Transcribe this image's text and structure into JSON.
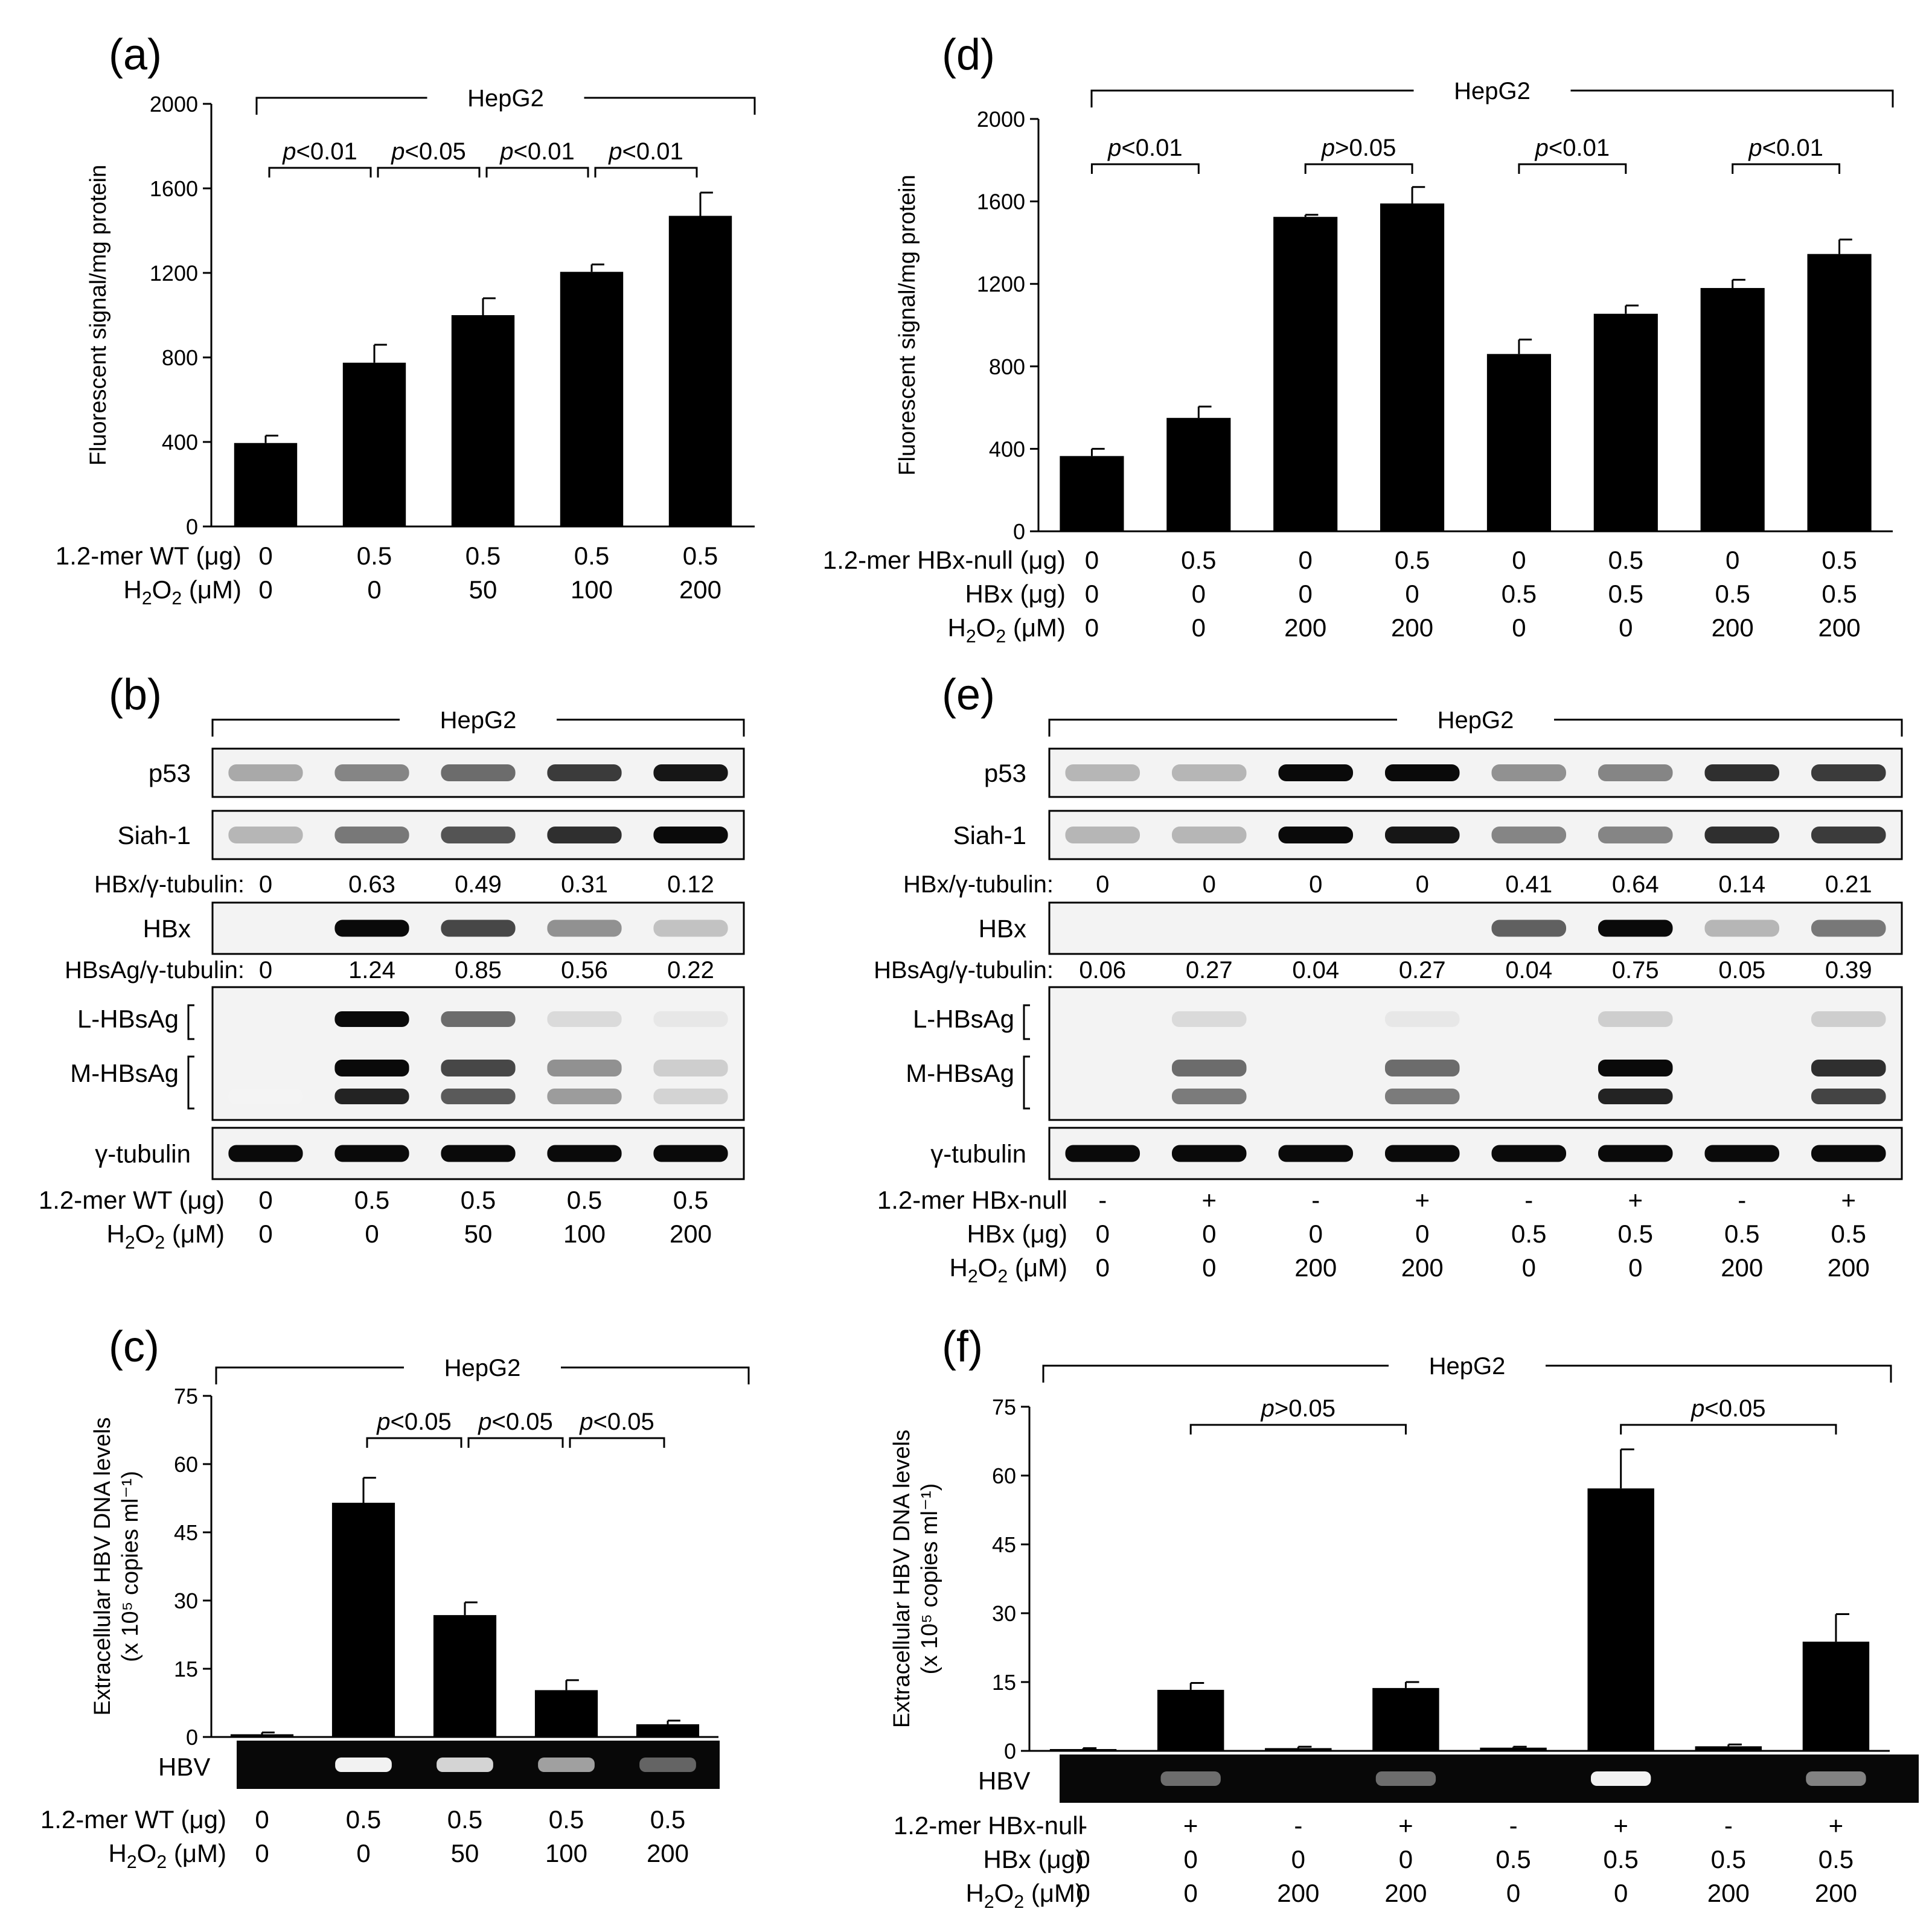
{
  "figure": {
    "cell_line": "HepG2",
    "panel_labels": [
      "(a)",
      "(b)",
      "(c)",
      "(d)",
      "(e)",
      "(f)"
    ]
  },
  "chart_data": [
    {
      "panel": "(a)",
      "type": "bar",
      "ylabel": "Fluorescent signal/mg protein",
      "ylim": [
        0,
        2000
      ],
      "yticks": [
        0,
        400,
        800,
        1200,
        1600,
        2000
      ],
      "values": [
        395,
        775,
        1000,
        1205,
        1470
      ],
      "errors": [
        35,
        85,
        80,
        35,
        110
      ],
      "conditions": [
        {
          "label": "1.2-mer WT (μg)",
          "values": [
            "0",
            "0.5",
            "0.5",
            "0.5",
            "0.5"
          ]
        },
        {
          "label": "H2O2 (μM)",
          "values": [
            "0",
            "0",
            "50",
            "100",
            "200"
          ]
        }
      ],
      "comparisons": [
        {
          "from": 0,
          "to": 1,
          "text": "p<0.01"
        },
        {
          "from": 1,
          "to": 2,
          "text": "p<0.05"
        },
        {
          "from": 2,
          "to": 3,
          "text": "p<0.01"
        },
        {
          "from": 3,
          "to": 4,
          "text": "p<0.01"
        }
      ]
    },
    {
      "panel": "(d)",
      "type": "bar",
      "ylabel": "Fluorescent signal/mg protein",
      "ylim": [
        0,
        2000
      ],
      "yticks": [
        0,
        400,
        800,
        1200,
        1600,
        2000
      ],
      "values": [
        365,
        550,
        1525,
        1590,
        860,
        1055,
        1180,
        1345
      ],
      "errors": [
        35,
        55,
        10,
        80,
        70,
        40,
        40,
        70
      ],
      "conditions": [
        {
          "label": "1.2-mer HBx-null (μg)",
          "values": [
            "0",
            "0.5",
            "0",
            "0.5",
            "0",
            "0.5",
            "0",
            "0.5"
          ]
        },
        {
          "label": "HBx (μg)",
          "values": [
            "0",
            "0",
            "0",
            "0",
            "0.5",
            "0.5",
            "0.5",
            "0.5"
          ]
        },
        {
          "label": "H2O2 (μM)",
          "values": [
            "0",
            "0",
            "200",
            "200",
            "0",
            "0",
            "200",
            "200"
          ]
        }
      ],
      "comparisons": [
        {
          "from": 0,
          "to": 1,
          "text": "p<0.01"
        },
        {
          "from": 2,
          "to": 3,
          "text": "p>0.05"
        },
        {
          "from": 4,
          "to": 5,
          "text": "p<0.01"
        },
        {
          "from": 6,
          "to": 7,
          "text": "p<0.01"
        }
      ]
    },
    {
      "panel": "(c)",
      "type": "bar",
      "ylabel_line1": "Extracellular HBV DNA levels",
      "ylabel_line2": "(x 10⁵ copies ml⁻¹)",
      "ylim": [
        0,
        75
      ],
      "yticks": [
        0,
        15,
        30,
        45,
        60,
        75
      ],
      "values": [
        0.6,
        51.5,
        26.8,
        10.3,
        2.8
      ],
      "errors": [
        0.4,
        5.5,
        2.8,
        2.2,
        0.8
      ],
      "gel_label": "HBV",
      "gel_intensity": [
        0,
        1.0,
        0.85,
        0.6,
        0.3
      ],
      "conditions": [
        {
          "label": "1.2-mer WT (μg)",
          "values": [
            "0",
            "0.5",
            "0.5",
            "0.5",
            "0.5"
          ]
        },
        {
          "label": "H2O2 (μM)",
          "values": [
            "0",
            "0",
            "50",
            "100",
            "200"
          ]
        }
      ],
      "comparisons": [
        {
          "from": 1,
          "to": 2,
          "text": "p<0.05"
        },
        {
          "from": 2,
          "to": 3,
          "text": "p<0.05"
        },
        {
          "from": 3,
          "to": 4,
          "text": "p<0.05"
        }
      ]
    },
    {
      "panel": "(f)",
      "type": "bar",
      "ylabel_line1": "Extracellular HBV DNA levels",
      "ylabel_line2": "(x 10⁵ copies ml⁻¹)",
      "ylim": [
        0,
        75
      ],
      "yticks": [
        0,
        15,
        30,
        45,
        60,
        75
      ],
      "values": [
        0.4,
        13.3,
        0.6,
        13.7,
        0.7,
        57.2,
        1.0,
        23.8
      ],
      "errors": [
        0.2,
        1.5,
        0.3,
        1.3,
        0.2,
        8.5,
        0.4,
        6.0
      ],
      "gel_label": "HBV",
      "gel_intensity": [
        0,
        0.35,
        0,
        0.35,
        0,
        1.0,
        0,
        0.45
      ],
      "conditions": [
        {
          "label": "1.2-mer HBx-null",
          "values": [
            "-",
            "+",
            "-",
            "+",
            "-",
            "+",
            "-",
            "+"
          ]
        },
        {
          "label": "HBx (μg)",
          "values": [
            "0",
            "0",
            "0",
            "0",
            "0.5",
            "0.5",
            "0.5",
            "0.5"
          ]
        },
        {
          "label": "H2O2 (μM)",
          "values": [
            "0",
            "0",
            "200",
            "200",
            "0",
            "0",
            "200",
            "200"
          ]
        }
      ],
      "comparisons": [
        {
          "from": 1,
          "to": 3,
          "text": "p>0.05"
        },
        {
          "from": 5,
          "to": 7,
          "text": "p<0.05"
        }
      ]
    }
  ],
  "western_blots": [
    {
      "panel": "(b)",
      "bands": {
        "p53": [
          0.35,
          0.5,
          0.6,
          0.8,
          0.95
        ],
        "Siah-1": [
          0.3,
          0.55,
          0.7,
          0.85,
          1.0
        ],
        "HBx": [
          0,
          1.0,
          0.75,
          0.45,
          0.25
        ],
        "L-HBsAg": [
          0.05,
          1.0,
          0.6,
          0.15,
          0.1
        ],
        "M-HBsAg": [
          0.05,
          1.0,
          0.75,
          0.45,
          0.2
        ],
        "γ-tubulin": [
          1,
          1,
          1,
          1,
          1
        ]
      },
      "labels": {
        "p53": "p53",
        "siah": "Siah-1",
        "hbx": "HBx",
        "lhbs": "L-HBsAg",
        "mhbs": "M-HBsAg",
        "tub": "γ-tubulin"
      },
      "hbx_ratio_label": "HBx/γ-tubulin:",
      "hbx_ratios": [
        "0",
        "0.63",
        "0.49",
        "0.31",
        "0.12"
      ],
      "hbsag_ratio_label": "HBsAg/γ-tubulin:",
      "hbsag_ratios": [
        "0",
        "1.24",
        "0.85",
        "0.56",
        "0.22"
      ],
      "conditions": [
        {
          "label": "1.2-mer WT (μg)",
          "values": [
            "0",
            "0.5",
            "0.5",
            "0.5",
            "0.5"
          ]
        },
        {
          "label": "H2O2 (μM)",
          "values": [
            "0",
            "0",
            "50",
            "100",
            "200"
          ]
        }
      ]
    },
    {
      "panel": "(e)",
      "bands": {
        "p53": [
          0.3,
          0.3,
          1.0,
          1.0,
          0.45,
          0.5,
          0.85,
          0.8
        ],
        "Siah-1": [
          0.3,
          0.3,
          1.0,
          0.95,
          0.5,
          0.5,
          0.85,
          0.8
        ],
        "HBx": [
          0,
          0,
          0,
          0,
          0.65,
          1.0,
          0.3,
          0.55
        ],
        "L-HBsAg": [
          0,
          0.15,
          0,
          0.1,
          0,
          0.2,
          0,
          0.2
        ],
        "M-HBsAg": [
          0,
          0.6,
          0,
          0.6,
          0,
          1.0,
          0,
          0.85
        ],
        "γ-tubulin": [
          1,
          1,
          1,
          1,
          1,
          1,
          1,
          1
        ]
      },
      "labels": {
        "p53": "p53",
        "siah": "Siah-1",
        "hbx": "HBx",
        "lhbs": "L-HBsAg",
        "mhbs": "M-HBsAg",
        "tub": "γ-tubulin"
      },
      "hbx_ratio_label": "HBx/γ-tubulin:",
      "hbx_ratios": [
        "0",
        "0",
        "0",
        "0",
        "0.41",
        "0.64",
        "0.14",
        "0.21"
      ],
      "hbsag_ratio_label": "HBsAg/γ-tubulin:",
      "hbsag_ratios": [
        "0.06",
        "0.27",
        "0.04",
        "0.27",
        "0.04",
        "0.75",
        "0.05",
        "0.39"
      ],
      "conditions": [
        {
          "label": "1.2-mer HBx-null",
          "values": [
            "-",
            "+",
            "-",
            "+",
            "-",
            "+",
            "-",
            "+"
          ]
        },
        {
          "label": "HBx (μg)",
          "values": [
            "0",
            "0",
            "0",
            "0",
            "0.5",
            "0.5",
            "0.5",
            "0.5"
          ]
        },
        {
          "label": "H2O2 (μM)",
          "values": [
            "0",
            "0",
            "200",
            "200",
            "0",
            "0",
            "200",
            "200"
          ]
        }
      ]
    }
  ]
}
